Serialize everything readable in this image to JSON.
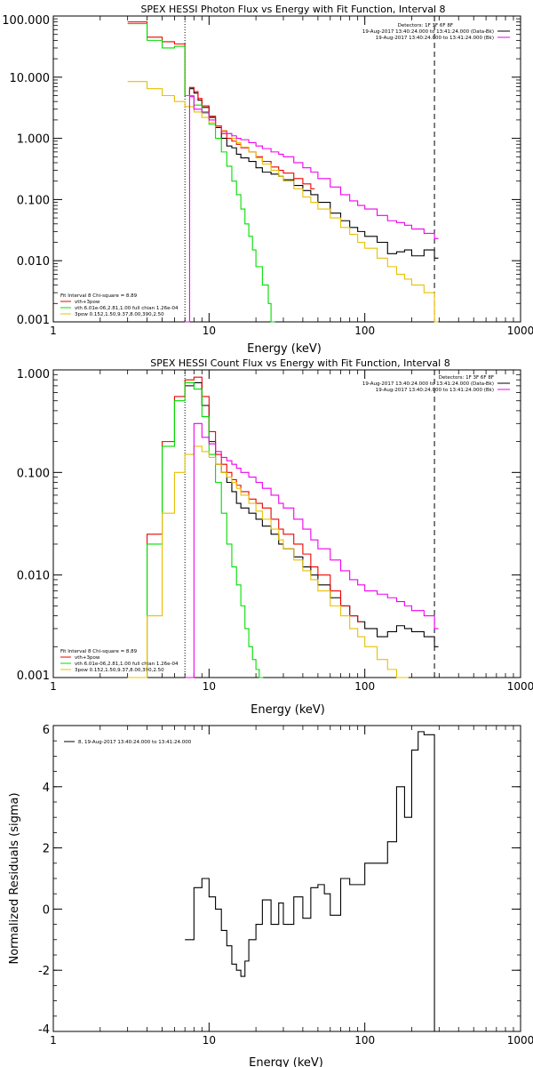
{
  "chart_data": [
    {
      "type": "line",
      "title": "SPEX HESSI Photon Flux vs Energy with Fit Function, Interval 8",
      "xlabel": "Energy (keV)",
      "ylabel": "",
      "xscale": "log",
      "yscale": "log",
      "xlim": [
        1,
        1000
      ],
      "ylim": [
        0.001,
        100
      ],
      "xticks": [
        "1",
        "10",
        "100",
        "1000"
      ],
      "yticks": [
        "0.001",
        "0.010",
        "0.100",
        "1.000",
        "10.000",
        "100.000"
      ],
      "vlines": [
        {
          "x": 7,
          "style": "dotted"
        },
        {
          "x": 280,
          "style": "dashed"
        }
      ],
      "legend_top_right": [
        "Detectors: 1F 3F 6F 8F",
        "19-Aug-2017 13:40:24.000 to 13:41:24.000 (Data-Bk)",
        "19-Aug-2017 13:40:24.000 to 13:41:24.000 (Bk)"
      ],
      "legend_bottom_left": [
        "Fit Interval 8   Chi-square = 8.89",
        "vth+3pow",
        "vth 6.01e-06,2.81,1.00  full chian 1.26e-04",
        "3pow 0.152,1.50,9.37,8.00,390,2.50"
      ],
      "series": [
        {
          "color": "#000000",
          "x": [
            7,
            7.5,
            8,
            8.5,
            9,
            10,
            11,
            12,
            13,
            14,
            15,
            16,
            18,
            20,
            22,
            25,
            28,
            30,
            35,
            40,
            45,
            50,
            60,
            70,
            80,
            90,
            100,
            120,
            140,
            160,
            180,
            200,
            240,
            280
          ],
          "y": [
            5,
            6.5,
            5.5,
            4.2,
            3.2,
            2.2,
            1.5,
            1.0,
            0.75,
            0.7,
            0.55,
            0.48,
            0.42,
            0.33,
            0.28,
            0.26,
            0.24,
            0.21,
            0.17,
            0.14,
            0.12,
            0.09,
            0.06,
            0.045,
            0.035,
            0.03,
            0.025,
            0.02,
            0.013,
            0.014,
            0.015,
            0.012,
            0.015,
            0.011
          ]
        },
        {
          "color": "#ee0000",
          "x": [
            3,
            4,
            5,
            6,
            7,
            7.5,
            8,
            8.5,
            9,
            10,
            11,
            12,
            13,
            14,
            15,
            16,
            18,
            20,
            22,
            25,
            28,
            30,
            35,
            40,
            45
          ],
          "y": [
            80,
            45,
            38,
            35,
            5,
            6.8,
            5.8,
            4.5,
            3.4,
            2.3,
            1.6,
            1.2,
            1.0,
            0.9,
            0.8,
            0.7,
            0.6,
            0.5,
            0.42,
            0.34,
            0.3,
            0.27,
            0.22,
            0.18,
            0.15
          ]
        },
        {
          "color": "#00dd00",
          "x": [
            3,
            4,
            5,
            6,
            7,
            8,
            9,
            10,
            11,
            12,
            13,
            14,
            15,
            16,
            17,
            18,
            19,
            20,
            22,
            24,
            25
          ],
          "y": [
            75,
            40,
            30,
            32,
            5,
            3.5,
            2.6,
            1.7,
            1.0,
            0.6,
            0.35,
            0.2,
            0.12,
            0.07,
            0.04,
            0.025,
            0.015,
            0.008,
            0.004,
            0.002,
            0.0009
          ]
        },
        {
          "color": "#e8c000",
          "x": [
            3,
            4,
            5,
            6,
            7,
            8,
            9,
            10,
            11,
            12,
            13,
            14,
            15,
            16,
            18,
            20,
            22,
            25,
            28,
            30,
            35,
            40,
            45,
            50,
            60,
            70,
            80,
            90,
            100,
            120,
            140,
            160,
            180,
            200,
            240,
            280
          ],
          "y": [
            8.5,
            6.5,
            5,
            4,
            3.3,
            2.7,
            2.2,
            1.8,
            1.55,
            1.35,
            1.2,
            1.0,
            0.85,
            0.72,
            0.6,
            0.48,
            0.38,
            0.3,
            0.24,
            0.2,
            0.15,
            0.11,
            0.09,
            0.07,
            0.05,
            0.035,
            0.027,
            0.02,
            0.016,
            0.011,
            0.008,
            0.006,
            0.005,
            0.004,
            0.003,
            0.0009
          ]
        },
        {
          "color": "#ee00ee",
          "x": [
            7,
            7.5,
            8,
            9,
            10,
            11,
            12,
            13,
            14,
            15,
            16,
            18,
            20,
            22,
            25,
            28,
            30,
            35,
            40,
            45,
            50,
            60,
            70,
            80,
            90,
            100,
            120,
            140,
            160,
            180,
            200,
            240,
            280
          ],
          "y": [
            0.001,
            4.8,
            3.0,
            2.7,
            2.0,
            1.6,
            1.3,
            1.2,
            1.1,
            1.0,
            0.95,
            0.85,
            0.75,
            0.68,
            0.6,
            0.55,
            0.5,
            0.4,
            0.33,
            0.28,
            0.22,
            0.16,
            0.12,
            0.095,
            0.08,
            0.07,
            0.055,
            0.045,
            0.042,
            0.038,
            0.033,
            0.028,
            0.023
          ]
        }
      ]
    },
    {
      "type": "line",
      "title": "SPEX HESSI Count Flux vs Energy with Fit Function, Interval 8",
      "xlabel": "Energy (keV)",
      "ylabel": "",
      "xscale": "log",
      "yscale": "log",
      "xlim": [
        1,
        1000
      ],
      "ylim": [
        0.001,
        1
      ],
      "xticks": [
        "1",
        "10",
        "100",
        "1000"
      ],
      "yticks": [
        "0.001",
        "0.010",
        "0.100",
        "1.000"
      ],
      "vlines": [
        {
          "x": 7,
          "style": "dotted"
        },
        {
          "x": 280,
          "style": "dashed"
        }
      ],
      "legend_top_right": [
        "Detectors: 1F 3F 6F 8F",
        "19-Aug-2017 13:40:24.000 to 13:41:24.000 (Data-Bk)",
        "19-Aug-2017 13:40:24.000 to 13:41:24.000 (Bk)"
      ],
      "legend_bottom_left": [
        "Fit Interval 8   Chi-square = 8.89",
        "vth+3pow",
        "vth 6.01e-06,2.81,1.00  full chian 1.26e-04",
        "3pow 0.152,1.50,9.37,8.00,390,2.50"
      ],
      "series": [
        {
          "color": "#000000",
          "x": [
            7,
            8,
            9,
            10,
            11,
            12,
            13,
            14,
            15,
            16,
            18,
            20,
            22,
            25,
            28,
            30,
            35,
            40,
            45,
            50,
            60,
            70,
            80,
            90,
            100,
            120,
            140,
            160,
            180,
            200,
            240,
            280
          ],
          "y": [
            0.7,
            0.75,
            0.45,
            0.2,
            0.12,
            0.1,
            0.08,
            0.065,
            0.05,
            0.045,
            0.04,
            0.035,
            0.03,
            0.025,
            0.02,
            0.018,
            0.015,
            0.012,
            0.01,
            0.008,
            0.006,
            0.005,
            0.004,
            0.0035,
            0.003,
            0.0025,
            0.0028,
            0.0032,
            0.003,
            0.0028,
            0.0025,
            0.002
          ]
        },
        {
          "color": "#ee0000",
          "x": [
            3,
            4,
            5,
            6,
            7,
            8,
            9,
            10,
            11,
            12,
            13,
            14,
            15,
            16,
            18,
            20,
            22,
            25,
            28,
            30,
            35,
            40,
            45,
            50,
            60,
            70,
            80,
            90
          ],
          "y": [
            0.001,
            0.025,
            0.2,
            0.55,
            0.8,
            0.85,
            0.55,
            0.25,
            0.15,
            0.12,
            0.1,
            0.085,
            0.075,
            0.065,
            0.055,
            0.05,
            0.045,
            0.035,
            0.028,
            0.025,
            0.02,
            0.016,
            0.012,
            0.01,
            0.007,
            0.005,
            0.004,
            0.0035
          ]
        },
        {
          "color": "#00dd00",
          "x": [
            3,
            4,
            5,
            6,
            7,
            8,
            9,
            10,
            11,
            12,
            13,
            14,
            15,
            16,
            17,
            18,
            19,
            20,
            21
          ],
          "y": [
            0.001,
            0.02,
            0.18,
            0.5,
            0.75,
            0.65,
            0.35,
            0.15,
            0.08,
            0.04,
            0.02,
            0.012,
            0.008,
            0.005,
            0.003,
            0.002,
            0.0015,
            0.0012,
            0.001
          ]
        },
        {
          "color": "#e8c000",
          "x": [
            3,
            4,
            5,
            6,
            7,
            8,
            9,
            10,
            11,
            12,
            13,
            14,
            15,
            16,
            18,
            20,
            22,
            25,
            28,
            30,
            35,
            40,
            45,
            50,
            60,
            70,
            80,
            90,
            100,
            120,
            140,
            160,
            180
          ],
          "y": [
            0.001,
            0.004,
            0.04,
            0.1,
            0.15,
            0.18,
            0.16,
            0.14,
            0.12,
            0.1,
            0.09,
            0.08,
            0.07,
            0.06,
            0.05,
            0.042,
            0.035,
            0.028,
            0.022,
            0.018,
            0.014,
            0.011,
            0.009,
            0.007,
            0.005,
            0.004,
            0.003,
            0.0025,
            0.002,
            0.0015,
            0.0012,
            0.001,
            0.0009
          ]
        },
        {
          "color": "#ee00ee",
          "x": [
            7,
            8,
            9,
            10,
            11,
            12,
            13,
            14,
            15,
            16,
            18,
            20,
            22,
            25,
            28,
            30,
            35,
            40,
            45,
            50,
            60,
            70,
            80,
            90,
            100,
            120,
            140,
            160,
            180,
            200,
            240,
            280
          ],
          "y": [
            0.001,
            0.3,
            0.22,
            0.19,
            0.16,
            0.14,
            0.13,
            0.12,
            0.11,
            0.1,
            0.09,
            0.08,
            0.07,
            0.06,
            0.05,
            0.045,
            0.035,
            0.028,
            0.022,
            0.018,
            0.014,
            0.011,
            0.009,
            0.008,
            0.007,
            0.0065,
            0.006,
            0.0055,
            0.005,
            0.0045,
            0.004,
            0.003
          ]
        }
      ]
    },
    {
      "type": "line",
      "title": "",
      "xlabel": "Energy (keV)",
      "ylabel": "Normalized Residuals (sigma)",
      "xscale": "log",
      "yscale": "linear",
      "xlim": [
        1,
        1000
      ],
      "ylim": [
        -4,
        6
      ],
      "xticks": [
        "1",
        "10",
        "100",
        "1000"
      ],
      "yticks": [
        "-4",
        "-2",
        "0",
        "2",
        "4",
        "6"
      ],
      "legend": [
        "8, 19-Aug-2017 13:40:24.000 to 13:41:24.000"
      ],
      "series": [
        {
          "color": "#000000",
          "x": [
            7,
            8,
            9,
            10,
            11,
            12,
            13,
            14,
            15,
            16,
            17,
            18,
            20,
            22,
            25,
            28,
            30,
            35,
            40,
            45,
            50,
            55,
            60,
            70,
            80,
            90,
            100,
            120,
            140,
            160,
            180,
            200,
            220,
            240,
            280
          ],
          "y": [
            -1,
            0.7,
            1.0,
            0.4,
            0,
            -0.7,
            -1.2,
            -1.8,
            -2.0,
            -2.2,
            -1.7,
            -1.0,
            -0.5,
            0.3,
            -0.5,
            0.2,
            -0.5,
            0.4,
            -0.3,
            0.7,
            0.8,
            0.5,
            -0.2,
            1.0,
            0.8,
            0.8,
            1.5,
            1.5,
            2.2,
            4.0,
            3.0,
            5.2,
            5.8,
            5.7,
            -4
          ]
        }
      ]
    }
  ]
}
